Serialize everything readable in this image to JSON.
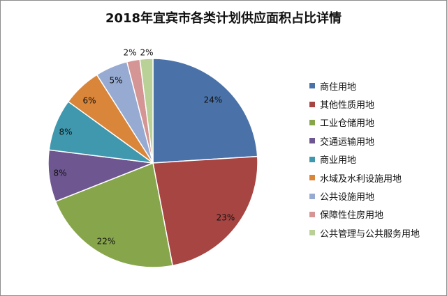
{
  "chart_data": {
    "type": "pie",
    "title": "2018年宜宾市各类计划供应面积占比详情",
    "legend_position": "right",
    "slices": [
      {
        "name": "商住用地",
        "value": 24,
        "label": "24%",
        "color": "#4a72a8"
      },
      {
        "name": "其他性质用地",
        "value": 23,
        "label": "23%",
        "color": "#a74542"
      },
      {
        "name": "工业仓储用地",
        "value": 22,
        "label": "22%",
        "color": "#87a64b"
      },
      {
        "name": "交通运输用地",
        "value": 8,
        "label": "8%",
        "color": "#6e5790"
      },
      {
        "name": "商业用地",
        "value": 8,
        "label": "8%",
        "color": "#3f98ae"
      },
      {
        "name": "水域及水利设施用地",
        "value": 6,
        "label": "6%",
        "color": "#d9853a"
      },
      {
        "name": "公共设施用地",
        "value": 5,
        "label": "5%",
        "color": "#97abd2"
      },
      {
        "name": "保障性住房用地",
        "value": 2,
        "label": "2%",
        "color": "#d49594"
      },
      {
        "name": "公共管理与公共服务用地",
        "value": 2,
        "label": "2%",
        "color": "#b9d196"
      }
    ]
  }
}
